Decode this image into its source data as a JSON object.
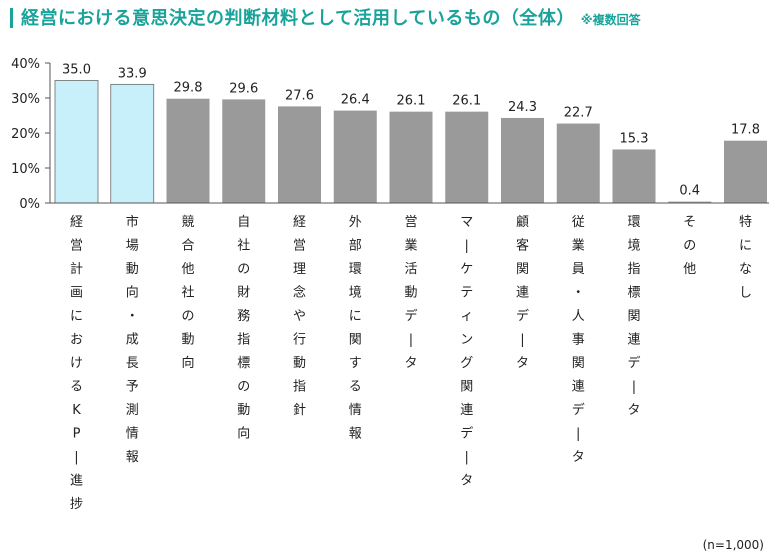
{
  "title": "経営における意思決定の判断材料として活用しているもの（全体）",
  "subtitle": "※複数回答",
  "note": "(n=1,000)",
  "colors": {
    "title": "#1aa39a",
    "highlight": "#c8f0fa",
    "bar": "#9a9a9a",
    "axis": "#555555"
  },
  "chart_data": {
    "type": "bar",
    "categories": [
      "経営計画におけるKPI進捗",
      "市場動向・成長予測情報",
      "競合他社の動向",
      "自社の財務指標の動向",
      "経営理念や行動指針",
      "外部環境に関する情報",
      "営業活動データ",
      "マーケティング関連データ",
      "顧客関連データ",
      "従業員・人事関連データ",
      "環境指標関連データ",
      "その他",
      "特になし"
    ],
    "values": [
      35.0,
      33.9,
      29.8,
      29.6,
      27.6,
      26.4,
      26.1,
      26.1,
      24.3,
      22.7,
      15.3,
      0.4,
      17.8
    ],
    "value_labels": [
      "35.0",
      "33.9",
      "29.8",
      "29.6",
      "27.6",
      "26.4",
      "26.1",
      "26.1",
      "24.3",
      "22.7",
      "15.3",
      "0.4",
      "17.8"
    ],
    "highlighted": [
      0,
      1
    ],
    "yticks": [
      "0%",
      "10%",
      "20%",
      "30%",
      "40%"
    ],
    "ylim": [
      0,
      40
    ],
    "grid": false
  }
}
